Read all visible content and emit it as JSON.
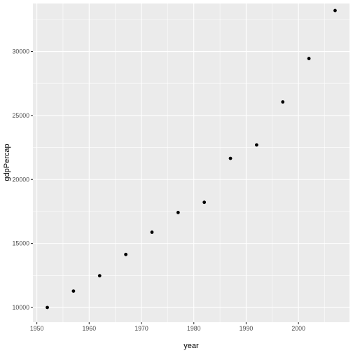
{
  "chart_data": {
    "type": "scatter",
    "title": "",
    "xlabel": "year",
    "ylabel": "gdpPercap",
    "xlim": [
      1949.25,
      2009.75
    ],
    "ylim": [
      8850,
      33750
    ],
    "x_ticks": [
      1950,
      1960,
      1970,
      1980,
      1990,
      2000
    ],
    "y_ticks": [
      10000,
      15000,
      20000,
      25000,
      30000
    ],
    "grid": true,
    "points": [
      {
        "x": 1952,
        "y": 10000
      },
      {
        "x": 1957,
        "y": 11280
      },
      {
        "x": 1962,
        "y": 12480
      },
      {
        "x": 1967,
        "y": 14140
      },
      {
        "x": 1972,
        "y": 15880
      },
      {
        "x": 1977,
        "y": 17420
      },
      {
        "x": 1982,
        "y": 18220
      },
      {
        "x": 1987,
        "y": 21650
      },
      {
        "x": 1992,
        "y": 22700
      },
      {
        "x": 1997,
        "y": 26060
      },
      {
        "x": 2002,
        "y": 29450
      },
      {
        "x": 2007,
        "y": 33200
      }
    ]
  },
  "colors": {
    "panel": "#ebebeb",
    "grid": "#ffffff",
    "point": "#000000",
    "tick_text": "#4d4d4d"
  }
}
